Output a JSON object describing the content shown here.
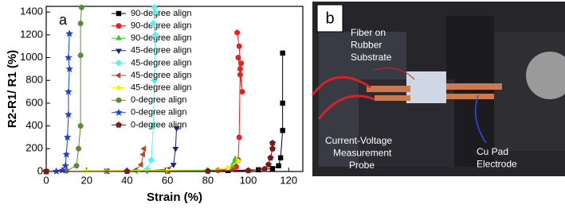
{
  "chart_data": {
    "type": "line",
    "panel_label": "a",
    "x_label": "Strain (%)",
    "y_label": "R2-R1/ R1 (%)",
    "xlim": [
      0,
      127
    ],
    "ylim": [
      0,
      1450
    ],
    "xticks": [
      0,
      20,
      40,
      60,
      80,
      100,
      120
    ],
    "yticks": [
      0,
      200,
      400,
      600,
      800,
      1000,
      1200,
      1400
    ],
    "grid": false,
    "legend": "upper center",
    "series": [
      {
        "name": "90-degree align",
        "color": "#000000",
        "marker": "square",
        "x": [
          0,
          30,
          60,
          90,
          105,
          112,
          115,
          116,
          117,
          117,
          117
        ],
        "values": [
          0,
          2,
          4,
          8,
          15,
          25,
          50,
          120,
          360,
          600,
          1040
        ]
      },
      {
        "name": "90-degree align",
        "color": "#e8211c",
        "marker": "circle",
        "x": [
          0,
          30,
          60,
          85,
          92,
          94,
          95,
          95.5,
          96,
          96.5,
          95,
          96,
          97,
          95.5,
          94.5
        ],
        "values": [
          0,
          2,
          5,
          10,
          20,
          40,
          100,
          300,
          900,
          950,
          1000,
          850,
          700,
          1100,
          1220
        ]
      },
      {
        "name": "90-degree align",
        "color": "#3ec92e",
        "marker": "triangle-up",
        "x": [
          0,
          40,
          80,
          90,
          92,
          93,
          93.5
        ],
        "values": [
          0,
          3,
          8,
          20,
          50,
          80,
          110
        ]
      },
      {
        "name": "45-degree align",
        "color": "#1a237e",
        "marker": "triangle-down",
        "x": [
          0,
          30,
          50,
          60,
          63,
          64,
          64.5
        ],
        "values": [
          0,
          3,
          8,
          20,
          60,
          200,
          380
        ]
      },
      {
        "name": "45-degree align",
        "color": "#5ef0f0",
        "marker": "diamond",
        "x": [
          0,
          30,
          45,
          50,
          52,
          53,
          53.5,
          54,
          53,
          54,
          53.5
        ],
        "values": [
          0,
          2,
          5,
          20,
          100,
          400,
          800,
          1200,
          1300,
          1400,
          1440
        ]
      },
      {
        "name": "45-degree align",
        "color": "#b04a2a",
        "marker": "triangle-left",
        "x": [
          0,
          30,
          44,
          47,
          48,
          48.5
        ],
        "values": [
          0,
          3,
          10,
          60,
          150,
          200
        ]
      },
      {
        "name": "45-degree align",
        "color": "#f2f20a",
        "marker": "triangle-right",
        "x": [
          0,
          20,
          40,
          60,
          80,
          90,
          95
        ],
        "values": [
          0,
          5,
          10,
          12,
          15,
          30,
          95
        ]
      },
      {
        "name": "0-degree align",
        "color": "#5d8a3a",
        "marker": "circle",
        "x": [
          0,
          10,
          15,
          16,
          17,
          17,
          17,
          17.5
        ],
        "values": [
          0,
          5,
          50,
          200,
          400,
          1020,
          1300,
          1440
        ]
      },
      {
        "name": "0-degree align",
        "color": "#1f3fd6",
        "marker": "star",
        "x": [
          0,
          5,
          8,
          9.5,
          10,
          10.5,
          11,
          11,
          11.5,
          11,
          11.5
        ],
        "values": [
          0,
          2,
          10,
          50,
          150,
          300,
          500,
          700,
          900,
          1000,
          1210
        ]
      },
      {
        "name": "0-degree align",
        "color": "#7a1a1a",
        "marker": "pentagon",
        "x": [
          0,
          40,
          80,
          100,
          108,
          110,
          111,
          112,
          112
        ],
        "values": [
          0,
          2,
          4,
          8,
          20,
          60,
          120,
          200,
          250
        ]
      }
    ]
  },
  "photo": {
    "panel_label": "b",
    "annotations": [
      {
        "lines": [
          "Fiber on",
          "Rubber",
          "Substrate"
        ]
      },
      {
        "lines": [
          "Current-Voltage",
          "Measurement",
          "Probe"
        ]
      },
      {
        "lines": [
          "Cu Pad",
          "Electrode"
        ]
      }
    ]
  }
}
